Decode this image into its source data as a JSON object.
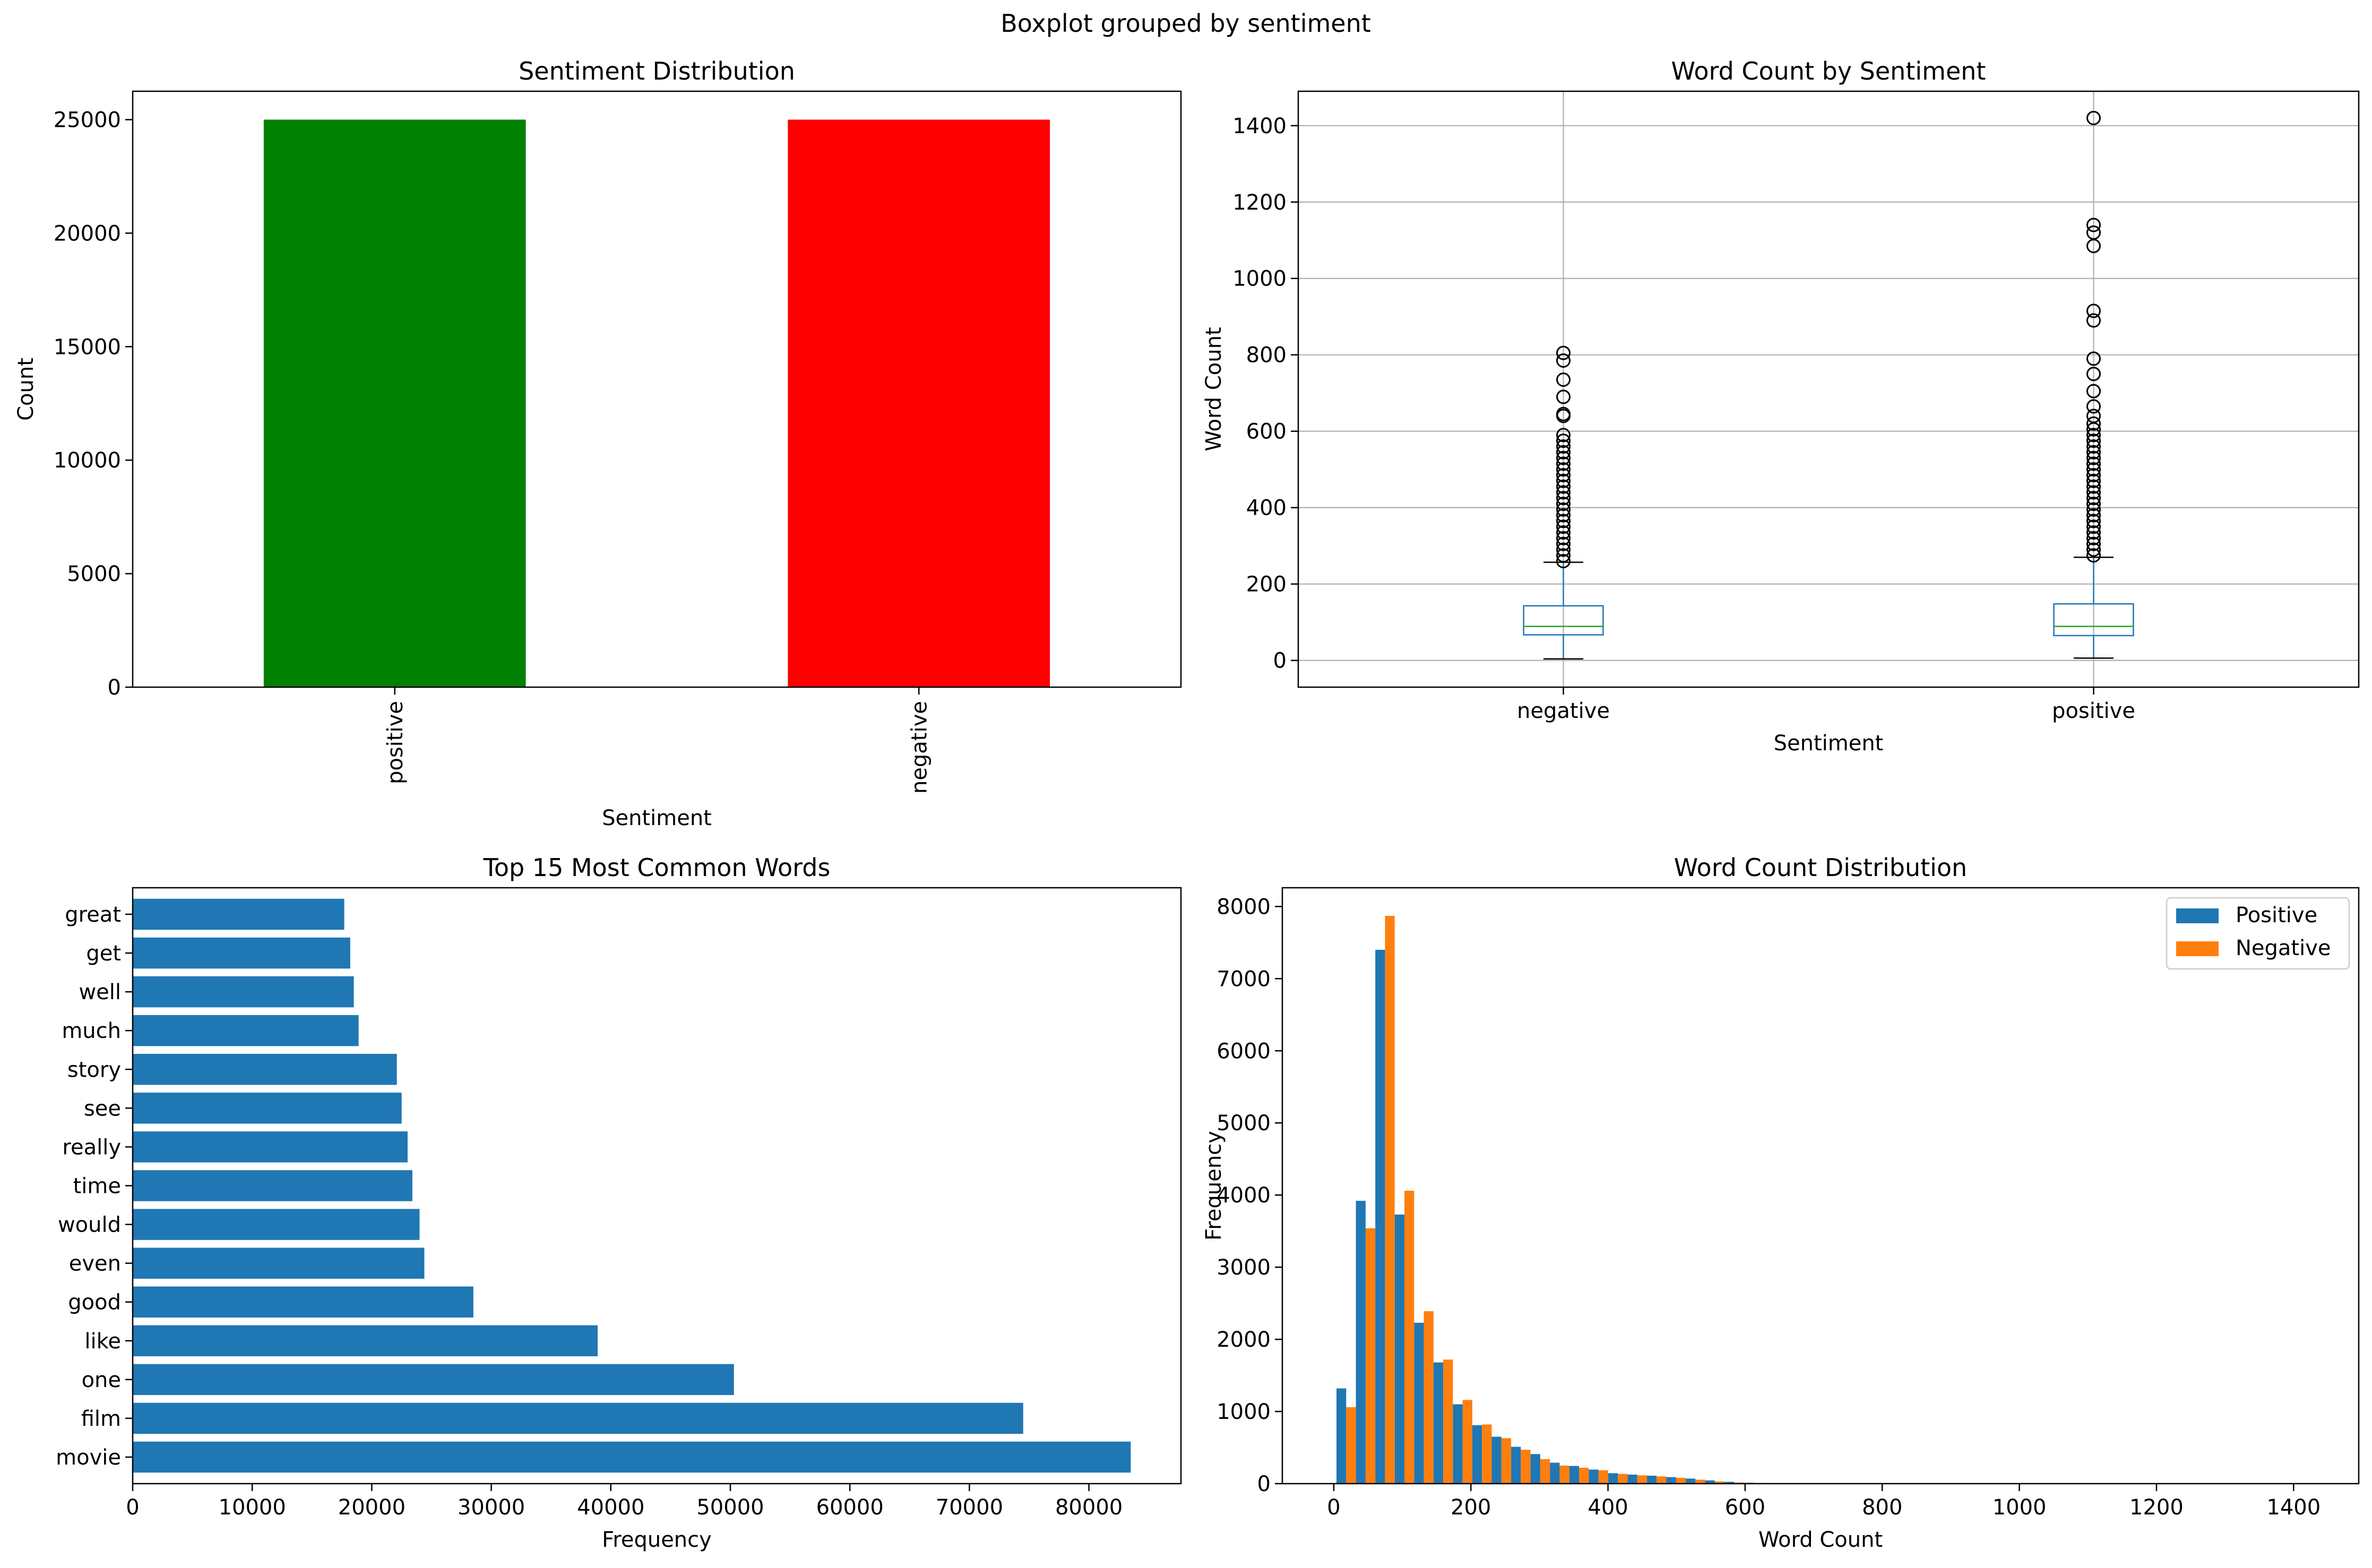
{
  "suptitle": "Boxplot grouped by sentiment",
  "chart_data": [
    {
      "type": "bar",
      "title": "Sentiment Distribution",
      "xlabel": "Sentiment",
      "ylabel": "Count",
      "categories": [
        "positive",
        "negative"
      ],
      "values": [
        25000,
        25000
      ],
      "colors": [
        "#008000",
        "#ff0000"
      ],
      "ylim": [
        0,
        26250
      ],
      "yticks": [
        0,
        5000,
        10000,
        15000,
        20000,
        25000
      ],
      "tick_labels_rotated": true,
      "grid": false
    },
    {
      "type": "box",
      "title": "Word Count by Sentiment",
      "xlabel": "Sentiment",
      "ylabel": "Word Count",
      "categories": [
        "negative",
        "positive"
      ],
      "boxes": [
        {
          "whisker_low": 4,
          "q1": 67,
          "median": 89,
          "q3": 143,
          "whisker_high": 257,
          "outliers": [
            260,
            275,
            290,
            305,
            320,
            335,
            350,
            365,
            380,
            395,
            410,
            425,
            440,
            455,
            470,
            485,
            500,
            515,
            530,
            545,
            560,
            575,
            590,
            640,
            645,
            690,
            735,
            785,
            805
          ]
        },
        {
          "whisker_low": 6,
          "q1": 65,
          "median": 89,
          "q3": 148,
          "whisker_high": 270,
          "outliers": [
            275,
            290,
            305,
            320,
            335,
            350,
            365,
            380,
            395,
            410,
            425,
            440,
            455,
            470,
            485,
            500,
            515,
            530,
            545,
            560,
            575,
            590,
            605,
            620,
            640,
            665,
            705,
            750,
            790,
            890,
            915,
            1085,
            1120,
            1140,
            1420
          ]
        }
      ],
      "ylim": [
        -70,
        1490
      ],
      "yticks": [
        0,
        200,
        400,
        600,
        800,
        1000,
        1200,
        1400
      ],
      "grid": true
    },
    {
      "type": "barh",
      "title": "Top 15 Most Common Words",
      "xlabel": "Frequency",
      "categories": [
        "movie",
        "film",
        "one",
        "like",
        "good",
        "even",
        "would",
        "time",
        "really",
        "see",
        "story",
        "much",
        "well",
        "get",
        "great"
      ],
      "values": [
        83500,
        74500,
        50300,
        38900,
        28500,
        24400,
        24000,
        23400,
        23000,
        22500,
        22100,
        18900,
        18500,
        18200,
        17700
      ],
      "color": "#1f77b4",
      "xlim": [
        0,
        87700
      ],
      "xticks": [
        0,
        10000,
        20000,
        30000,
        40000,
        50000,
        60000,
        70000,
        80000
      ],
      "grid": false
    },
    {
      "type": "histogram",
      "title": "Word Count Distribution",
      "xlabel": "Word Count",
      "ylabel": "Frequency",
      "bin_width": 28.3,
      "bin_start": 4,
      "series": [
        {
          "name": "Positive",
          "color": "#1f77b4",
          "values": [
            1320,
            3920,
            7400,
            3730,
            2230,
            1680,
            1100,
            810,
            650,
            510,
            410,
            290,
            245,
            195,
            145,
            125,
            110,
            90,
            70,
            45,
            25,
            12,
            6,
            4,
            3,
            2,
            2,
            1,
            1,
            1,
            1,
            0,
            0,
            0,
            0,
            0,
            0,
            0,
            0,
            0,
            0,
            0,
            0,
            0,
            0,
            0,
            0,
            0,
            0,
            0
          ]
        },
        {
          "name": "Negative",
          "color": "#ff7f0e",
          "values": [
            1060,
            3540,
            7870,
            4060,
            2390,
            1720,
            1160,
            820,
            630,
            470,
            340,
            250,
            220,
            185,
            135,
            115,
            100,
            80,
            55,
            30,
            15,
            8,
            4,
            3,
            2,
            1,
            1,
            1,
            0,
            0,
            0,
            0,
            0,
            0,
            0,
            0,
            0,
            0,
            0,
            0,
            0,
            0,
            0,
            0,
            0,
            0,
            0,
            0,
            0,
            0
          ]
        }
      ],
      "xlim": [
        -75,
        1495
      ],
      "ylim": [
        0,
        8260
      ],
      "xticks": [
        0,
        200,
        400,
        600,
        800,
        1000,
        1200,
        1400
      ],
      "yticks": [
        0,
        1000,
        2000,
        3000,
        4000,
        5000,
        6000,
        7000,
        8000
      ],
      "legend": "top-right",
      "grid": false
    }
  ]
}
